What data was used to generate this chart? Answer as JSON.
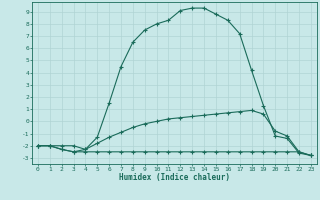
{
  "xlabel": "Humidex (Indice chaleur)",
  "bg_color": "#c8e8e8",
  "grid_color": "#b0d4d4",
  "line_color": "#1a6b5a",
  "x_ticks": [
    0,
    1,
    2,
    3,
    4,
    5,
    6,
    7,
    8,
    9,
    10,
    11,
    12,
    13,
    14,
    15,
    16,
    17,
    18,
    19,
    20,
    21,
    22,
    23
  ],
  "y_ticks": [
    -3,
    -2,
    -1,
    0,
    1,
    2,
    3,
    4,
    5,
    6,
    7,
    8,
    9
  ],
  "ylim": [
    -3.5,
    9.8
  ],
  "xlim": [
    -0.5,
    23.5
  ],
  "curve1_x": [
    0,
    1,
    2,
    3,
    4,
    5,
    6,
    7,
    8,
    9,
    10,
    11,
    12,
    13,
    14,
    15,
    16,
    17,
    18,
    19,
    20,
    21,
    22,
    23
  ],
  "curve1_y": [
    -2.0,
    -2.0,
    -2.3,
    -2.5,
    -2.3,
    -1.3,
    1.5,
    4.5,
    6.5,
    7.5,
    8.0,
    8.3,
    9.1,
    9.3,
    9.3,
    8.8,
    8.3,
    7.2,
    4.2,
    1.3,
    -1.2,
    -1.4,
    -2.6,
    -2.8
  ],
  "curve2_x": [
    0,
    1,
    2,
    3,
    4,
    5,
    6,
    7,
    8,
    9,
    10,
    11,
    12,
    13,
    14,
    15,
    16,
    17,
    18,
    19,
    20,
    21,
    22,
    23
  ],
  "curve2_y": [
    -2.0,
    -2.0,
    -2.0,
    -2.0,
    -2.3,
    -1.8,
    -1.3,
    -0.9,
    -0.5,
    -0.2,
    0.0,
    0.2,
    0.3,
    0.4,
    0.5,
    0.6,
    0.7,
    0.8,
    0.9,
    0.6,
    -0.8,
    -1.2,
    -2.5,
    -2.8
  ],
  "curve3_x": [
    0,
    1,
    2,
    3,
    4,
    5,
    6,
    7,
    8,
    9,
    10,
    11,
    12,
    13,
    14,
    15,
    16,
    17,
    18,
    19,
    20,
    21,
    22,
    23
  ],
  "curve3_y": [
    -2.0,
    -2.0,
    -2.3,
    -2.5,
    -2.5,
    -2.5,
    -2.5,
    -2.5,
    -2.5,
    -2.5,
    -2.5,
    -2.5,
    -2.5,
    -2.5,
    -2.5,
    -2.5,
    -2.5,
    -2.5,
    -2.5,
    -2.5,
    -2.5,
    -2.5,
    -2.5,
    -2.8
  ]
}
